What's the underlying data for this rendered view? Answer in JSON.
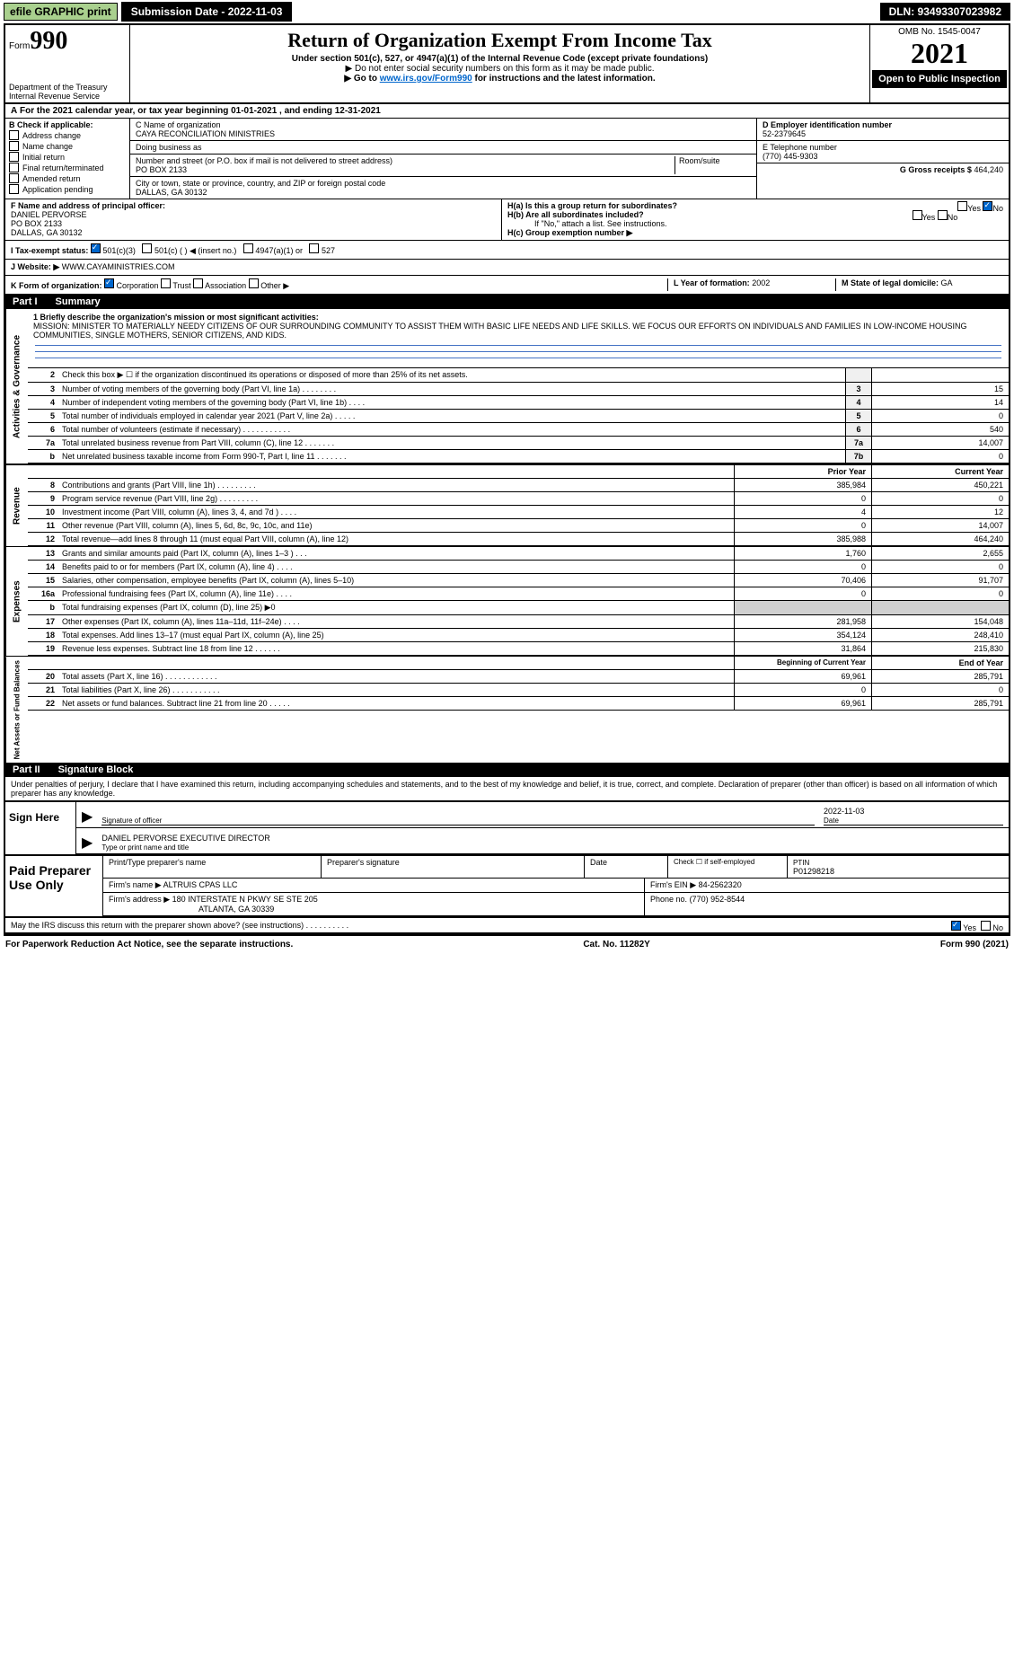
{
  "topbar": {
    "efile_label": "efile GRAPHIC print",
    "submission": "Submission Date - 2022-11-03",
    "dln": "DLN: 93493307023982"
  },
  "header": {
    "form_prefix": "Form",
    "form_num": "990",
    "title": "Return of Organization Exempt From Income Tax",
    "subtitle": "Under section 501(c), 527, or 4947(a)(1) of the Internal Revenue Code (except private foundations)",
    "note1": "▶ Do not enter social security numbers on this form as it may be made public.",
    "note2_prefix": "▶ Go to ",
    "note2_link": "www.irs.gov/Form990",
    "note2_suffix": " for instructions and the latest information.",
    "dept": "Department of the Treasury",
    "irs": "Internal Revenue Service",
    "omb": "OMB No. 1545-0047",
    "year": "2021",
    "open": "Open to Public Inspection"
  },
  "section_a": "For the 2021 calendar year, or tax year beginning 01-01-2021   , and ending 12-31-2021",
  "section_b": {
    "title": "B Check if applicable:",
    "items": [
      "Address change",
      "Name change",
      "Initial return",
      "Final return/terminated",
      "Amended return",
      "Application pending"
    ],
    "c_label": "C Name of organization",
    "org_name": "CAYA RECONCILIATION MINISTRIES",
    "dba_label": "Doing business as",
    "addr_label": "Number and street (or P.O. box if mail is not delivered to street address)",
    "room_label": "Room/suite",
    "addr": "PO BOX 2133",
    "city_label": "City or town, state or province, country, and ZIP or foreign postal code",
    "city": "DALLAS, GA  30132",
    "d_label": "D Employer identification number",
    "ein": "52-2379645",
    "e_label": "E Telephone number",
    "phone": "(770) 445-9303",
    "g_label": "G Gross receipts $",
    "gross": "464,240"
  },
  "section_f": {
    "f_label": "F  Name and address of principal officer:",
    "name": "DANIEL PERVORSE",
    "addr1": "PO BOX 2133",
    "addr2": "DALLAS, GA  30132",
    "h_a": "H(a)  Is this a group return for subordinates?",
    "h_b": "H(b)  Are all subordinates included?",
    "h_b_note": "If \"No,\" attach a list. See instructions.",
    "h_c": "H(c)  Group exemption number ▶",
    "yes": "Yes",
    "no": "No"
  },
  "section_i": {
    "label": "I    Tax-exempt status:",
    "opt1": "501(c)(3)",
    "opt2": "501(c) (   ) ◀ (insert no.)",
    "opt3": "4947(a)(1) or",
    "opt4": "527"
  },
  "section_j": {
    "label": "J   Website: ▶",
    "value": " WWW.CAYAMINISTRIES.COM"
  },
  "section_k": {
    "label": "K Form of organization:",
    "opts": [
      "Corporation",
      "Trust",
      "Association",
      "Other ▶"
    ],
    "l_label": "L Year of formation:",
    "l_val": "2002",
    "m_label": "M State of legal domicile:",
    "m_val": "GA"
  },
  "part1": {
    "label": "Part I",
    "title": "Summary"
  },
  "mission": {
    "line1_label": "1  Briefly describe the organization's mission or most significant activities:",
    "text": "MISSION: MINISTER TO MATERIALLY NEEDY CITIZENS OF OUR SURROUNDING COMMUNITY TO ASSIST THEM WITH BASIC LIFE NEEDS AND LIFE SKILLS. WE FOCUS OUR EFFORTS ON INDIVIDUALS AND FAMILIES IN LOW-INCOME HOUSING COMMUNITIES, SINGLE MOTHERS, SENIOR CITIZENS, AND KIDS."
  },
  "governance": {
    "side": "Activities & Governance",
    "lines": [
      {
        "n": "2",
        "d": "Check this box ▶ ☐ if the organization discontinued its operations or disposed of more than 25% of its net assets.",
        "b": "",
        "v": ""
      },
      {
        "n": "3",
        "d": "Number of voting members of the governing body (Part VI, line 1a)   .    .    .    .    .    .    .    .",
        "b": "3",
        "v": "15"
      },
      {
        "n": "4",
        "d": "Number of independent voting members of the governing body (Part VI, line 1b)    .    .    .    .",
        "b": "4",
        "v": "14"
      },
      {
        "n": "5",
        "d": "Total number of individuals employed in calendar year 2021 (Part V, line 2a)   .    .    .    .    .",
        "b": "5",
        "v": "0"
      },
      {
        "n": "6",
        "d": "Total number of volunteers (estimate if necessary)    .    .    .    .    .    .    .    .    .    .    .",
        "b": "6",
        "v": "540"
      },
      {
        "n": "7a",
        "d": "Total unrelated business revenue from Part VIII, column (C), line 12   .    .    .    .    .    .    .",
        "b": "7a",
        "v": "14,007"
      },
      {
        "n": "b",
        "d": "Net unrelated business taxable income from Form 990-T, Part I, line 11  .    .    .    .    .    .    .",
        "b": "7b",
        "v": "0"
      }
    ]
  },
  "revenue": {
    "side": "Revenue",
    "prior_label": "Prior Year",
    "current_label": "Current Year",
    "lines": [
      {
        "n": "8",
        "d": "Contributions and grants (Part VIII, line 1h)   .    .    .    .    .    .    .    .    .",
        "p": "385,984",
        "c": "450,221"
      },
      {
        "n": "9",
        "d": "Program service revenue (Part VIII, line 2g)  .    .    .    .    .    .    .    .    .",
        "p": "0",
        "c": "0"
      },
      {
        "n": "10",
        "d": "Investment income (Part VIII, column (A), lines 3, 4, and 7d )    .    .    .    .",
        "p": "4",
        "c": "12"
      },
      {
        "n": "11",
        "d": "Other revenue (Part VIII, column (A), lines 5, 6d, 8c, 9c, 10c, and 11e)",
        "p": "0",
        "c": "14,007"
      },
      {
        "n": "12",
        "d": "Total revenue—add lines 8 through 11 (must equal Part VIII, column (A), line 12)",
        "p": "385,988",
        "c": "464,240"
      }
    ]
  },
  "expenses": {
    "side": "Expenses",
    "lines": [
      {
        "n": "13",
        "d": "Grants and similar amounts paid (Part IX, column (A), lines 1–3 )  .    .    .",
        "p": "1,760",
        "c": "2,655"
      },
      {
        "n": "14",
        "d": "Benefits paid to or for members (Part IX, column (A), line 4)  .    .    .    .",
        "p": "0",
        "c": "0"
      },
      {
        "n": "15",
        "d": "Salaries, other compensation, employee benefits (Part IX, column (A), lines 5–10)",
        "p": "70,406",
        "c": "91,707"
      },
      {
        "n": "16a",
        "d": "Professional fundraising fees (Part IX, column (A), line 11e)  .    .    .    .",
        "p": "0",
        "c": "0"
      },
      {
        "n": "b",
        "d": "Total fundraising expenses (Part IX, column (D), line 25) ▶0",
        "p": "",
        "c": "",
        "shaded": true
      },
      {
        "n": "17",
        "d": "Other expenses (Part IX, column (A), lines 11a–11d, 11f–24e)   .    .    .    .",
        "p": "281,958",
        "c": "154,048"
      },
      {
        "n": "18",
        "d": "Total expenses. Add lines 13–17 (must equal Part IX, column (A), line 25)",
        "p": "354,124",
        "c": "248,410"
      },
      {
        "n": "19",
        "d": "Revenue less expenses. Subtract line 18 from line 12  .    .    .    .    .    .",
        "p": "31,864",
        "c": "215,830"
      }
    ]
  },
  "netassets": {
    "side": "Net Assets or Fund Balances",
    "begin_label": "Beginning of Current Year",
    "end_label": "End of Year",
    "lines": [
      {
        "n": "20",
        "d": "Total assets (Part X, line 16)   .    .    .    .    .    .    .    .    .    .    .    .",
        "p": "69,961",
        "c": "285,791"
      },
      {
        "n": "21",
        "d": "Total liabilities (Part X, line 26)    .    .    .    .    .    .    .    .    .    .    .",
        "p": "0",
        "c": "0"
      },
      {
        "n": "22",
        "d": "Net assets or fund balances. Subtract line 21 from line 20    .    .    .    .    .",
        "p": "69,961",
        "c": "285,791"
      }
    ]
  },
  "part2": {
    "label": "Part II",
    "title": "Signature Block",
    "declaration": "Under penalties of perjury, I declare that I have examined this return, including accompanying schedules and statements, and to the best of my knowledge and belief, it is true, correct, and complete. Declaration of preparer (other than officer) is based on all information of which preparer has any knowledge."
  },
  "sign": {
    "side": "Sign Here",
    "sig_label": "Signature of officer",
    "date_label": "Date",
    "date": "2022-11-03",
    "name": "DANIEL PERVORSE  EXECUTIVE DIRECTOR",
    "name_label": "Type or print name and title"
  },
  "preparer": {
    "side": "Paid Preparer Use Only",
    "h1": "Print/Type preparer's name",
    "h2": "Preparer's signature",
    "h3": "Date",
    "h4": "Check ☐ if self-employed",
    "h5": "PTIN",
    "ptin": "P01298218",
    "firm_label": "Firm's name    ▶",
    "firm": "ALTRUIS CPAS LLC",
    "ein_label": "Firm's EIN ▶",
    "ein": "84-2562320",
    "addr_label": "Firm's address ▶",
    "addr1": "180 INTERSTATE N PKWY SE STE 205",
    "addr2": "ATLANTA, GA  30339",
    "phone_label": "Phone no.",
    "phone": "(770) 952-8544"
  },
  "discuss": {
    "text": "May the IRS discuss this return with the preparer shown above? (see instructions)   .    .    .    .    .    .    .    .    .    .",
    "yes": "Yes",
    "no": "No"
  },
  "footer": {
    "left": "For Paperwork Reduction Act Notice, see the separate instructions.",
    "mid": "Cat. No. 11282Y",
    "right": "Form 990 (2021)"
  }
}
